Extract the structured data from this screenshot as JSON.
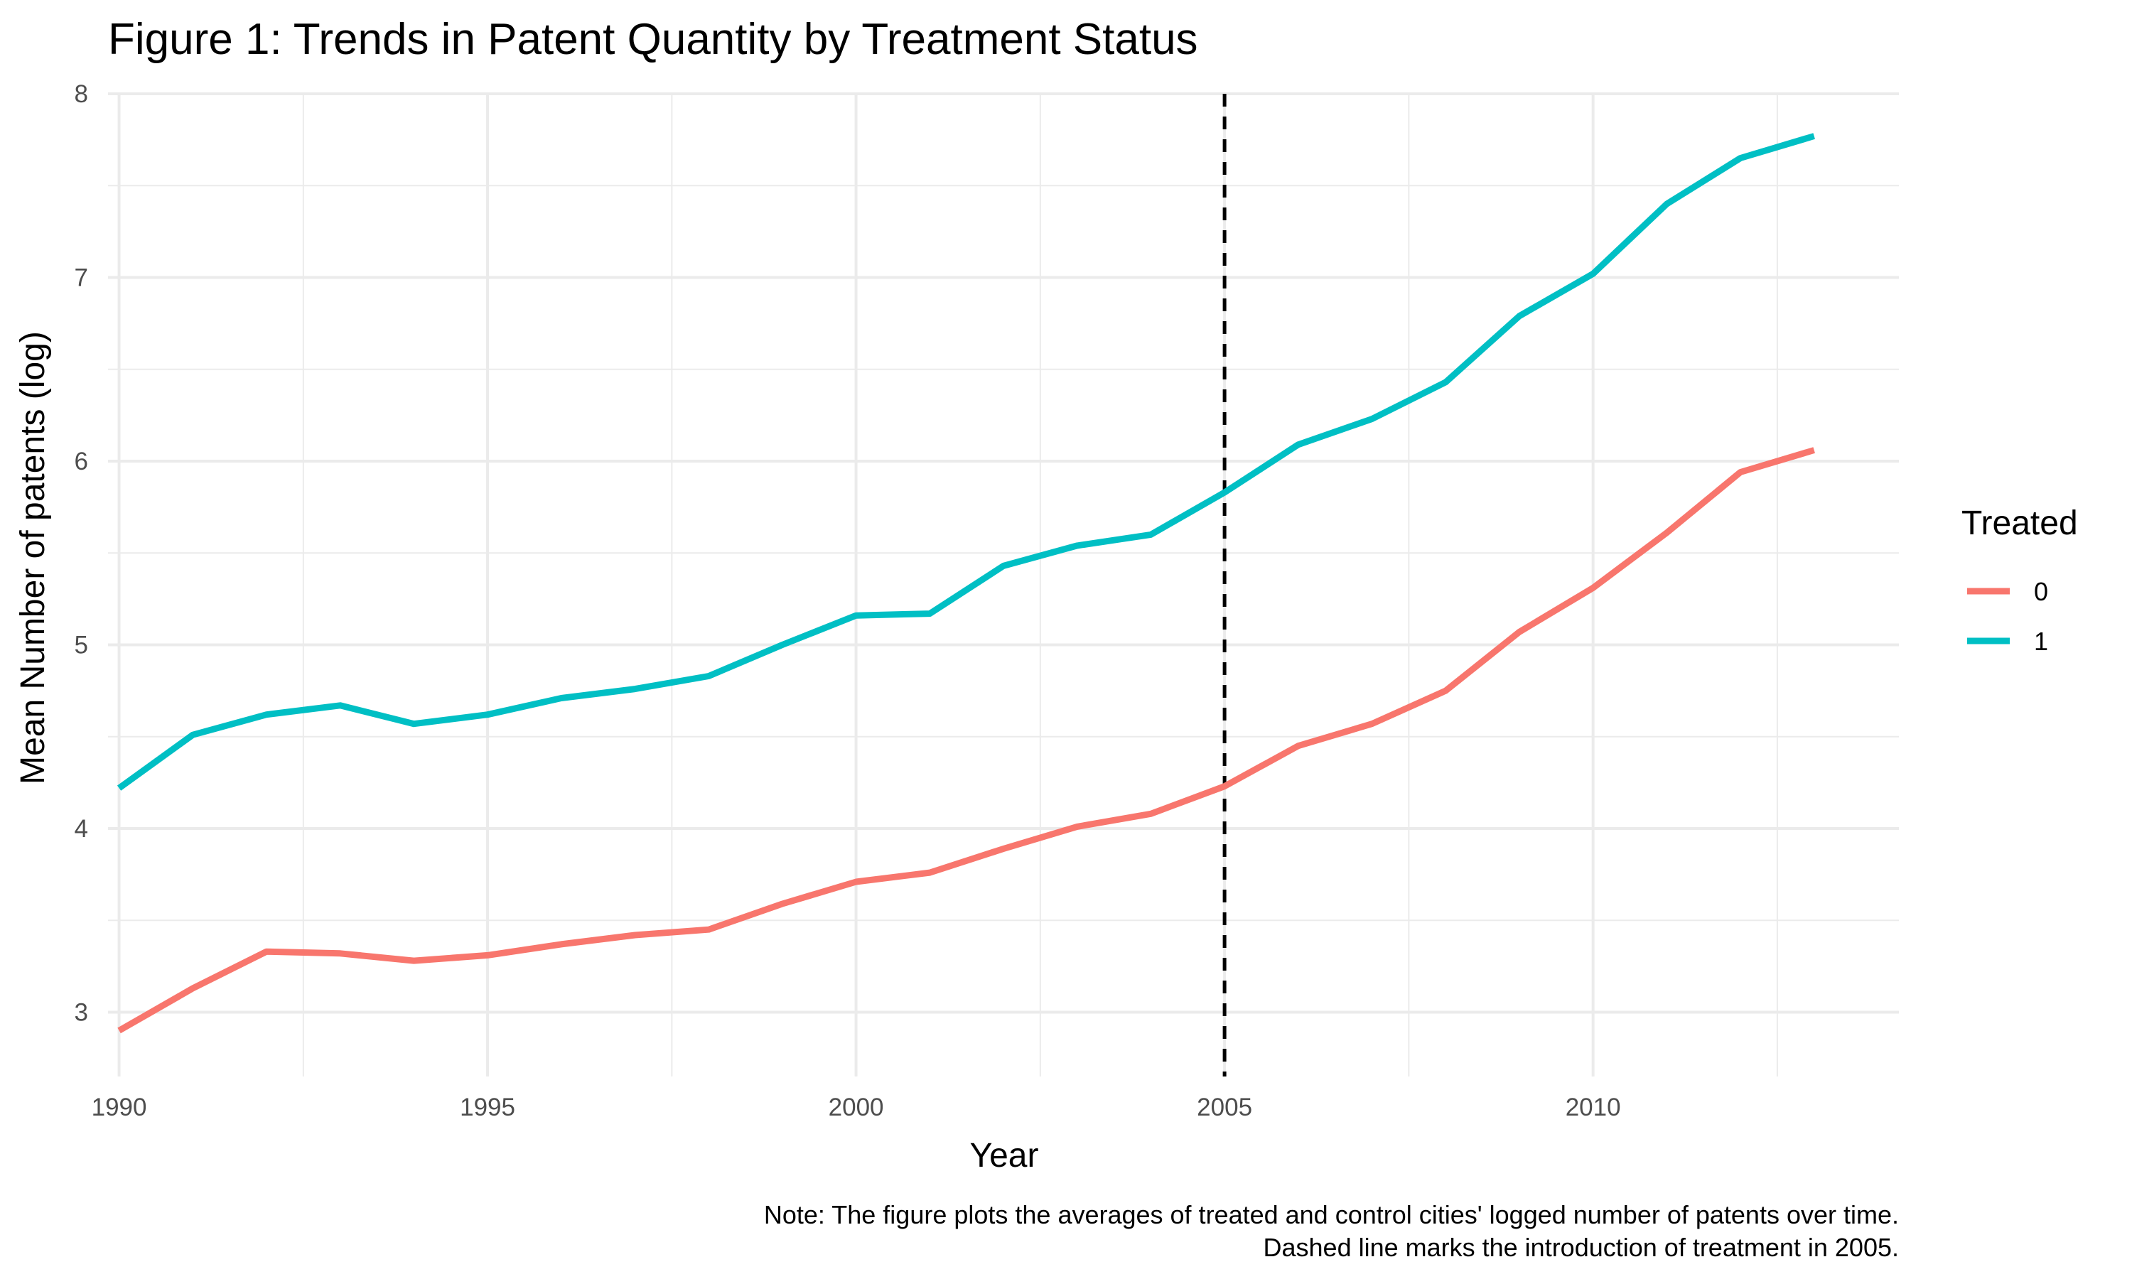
{
  "chart_data": {
    "type": "line",
    "title": "Figure 1: Trends in Patent Quantity by Treatment Status",
    "xlabel": "Year",
    "ylabel": "Mean Number of patents (log)",
    "x": [
      1990,
      1991,
      1992,
      1993,
      1994,
      1995,
      1996,
      1997,
      1998,
      1999,
      2000,
      2001,
      2002,
      2003,
      2004,
      2005,
      2006,
      2007,
      2008,
      2009,
      2010,
      2011,
      2012,
      2013
    ],
    "xlim": [
      1989.85,
      2014.15
    ],
    "ylim": [
      2.65,
      8.0
    ],
    "x_ticks": [
      1990,
      1995,
      2000,
      2005,
      2010
    ],
    "x_tick_labels": [
      "1990",
      "1995",
      "2000",
      "2005",
      "2010"
    ],
    "y_ticks": [
      3,
      4,
      5,
      6,
      7,
      8
    ],
    "y_tick_labels": [
      "3",
      "4",
      "5",
      "6",
      "7",
      "8"
    ],
    "grid": true,
    "legend": {
      "title": "Treated",
      "position": "right"
    },
    "series": [
      {
        "name": "0",
        "color": "#F8766D",
        "values": [
          2.9,
          3.13,
          3.33,
          3.32,
          3.28,
          3.31,
          3.37,
          3.42,
          3.45,
          3.59,
          3.71,
          3.76,
          3.89,
          4.01,
          4.08,
          4.23,
          4.45,
          4.57,
          4.75,
          5.07,
          5.31,
          5.61,
          5.94,
          6.06
        ]
      },
      {
        "name": "1",
        "color": "#00BFC4",
        "values": [
          4.22,
          4.51,
          4.62,
          4.67,
          4.57,
          4.62,
          4.71,
          4.76,
          4.83,
          5.0,
          5.16,
          5.17,
          5.43,
          5.54,
          5.6,
          5.83,
          6.09,
          6.23,
          6.43,
          6.79,
          7.02,
          7.4,
          7.65,
          7.77
        ]
      }
    ],
    "annotations": [
      {
        "type": "vline",
        "x": 2005,
        "style": "dashed",
        "color": "#000000"
      }
    ],
    "note_lines": [
      "Note: The figure plots the averages of treated and control cities' logged number of patents over time.",
      "Dashed line marks the introduction of treatment in 2005."
    ]
  }
}
